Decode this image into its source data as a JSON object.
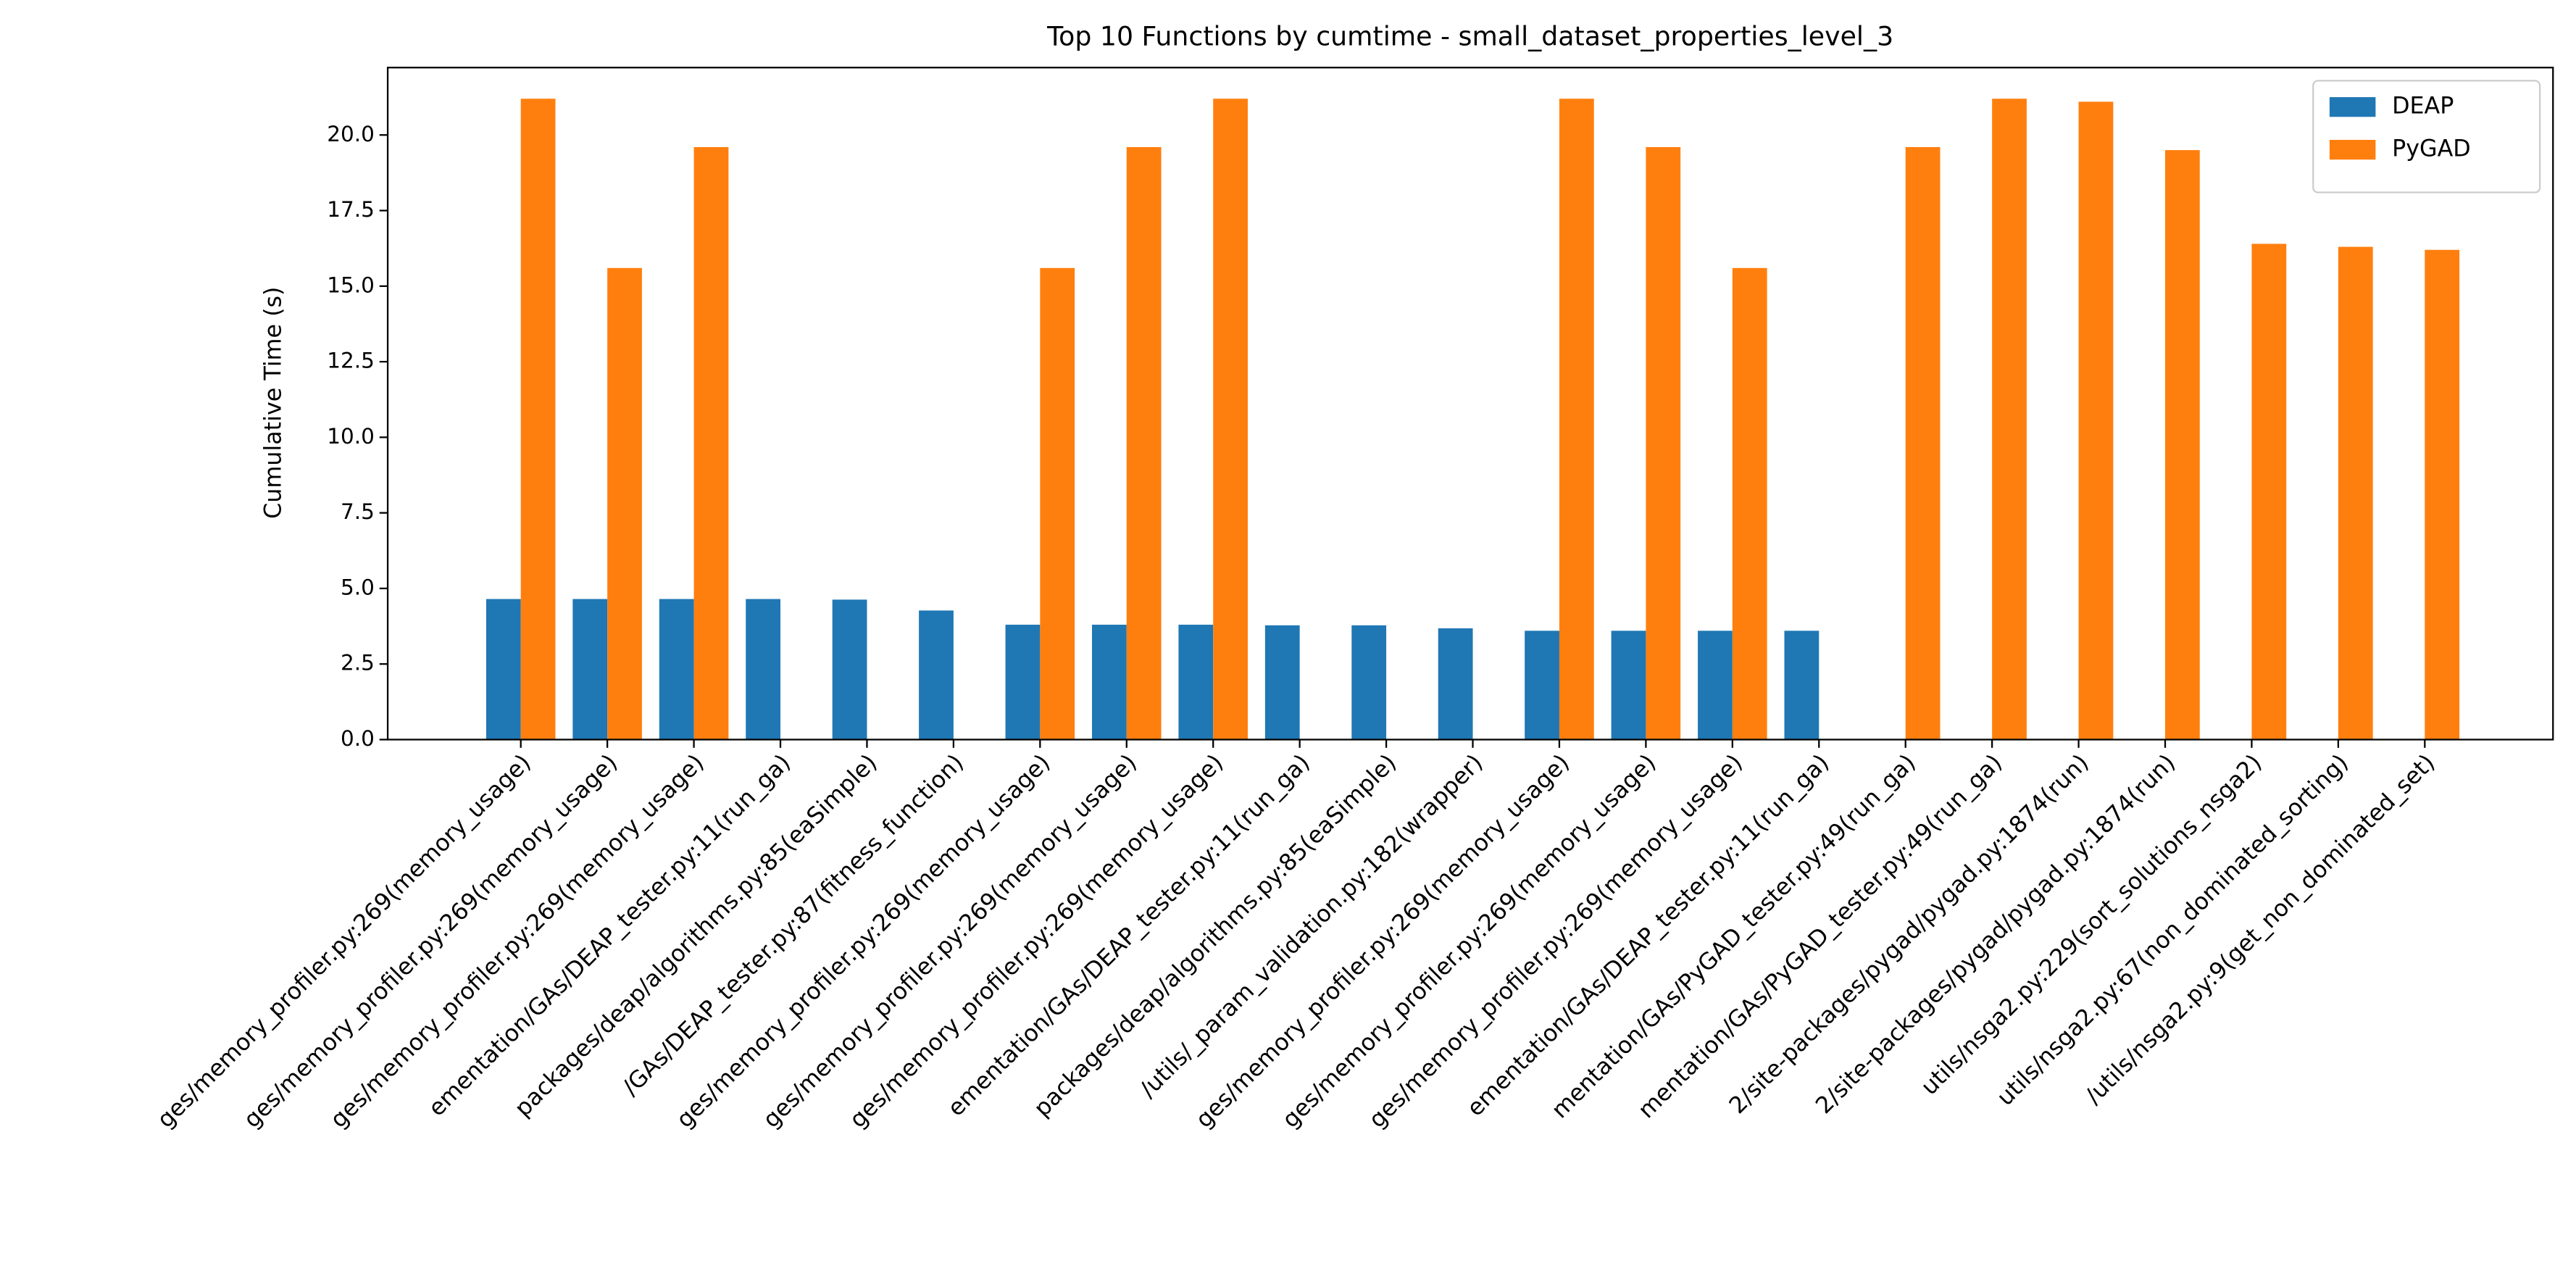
{
  "chart_data": {
    "type": "bar",
    "title": "Top 10 Functions by cumtime - small_dataset_properties_level_3",
    "y_label": "Cumulative Time (s)",
    "categories": [
      "ges/memory_profiler.py:269(memory_usage)",
      "ges/memory_profiler.py:269(memory_usage)",
      "ges/memory_profiler.py:269(memory_usage)",
      "ementation/GAs/DEAP_tester.py:11(run_ga)",
      "packages/deap/algorithms.py:85(eaSimple)",
      "/GAs/DEAP_tester.py:87(fitness_function)",
      "ges/memory_profiler.py:269(memory_usage)",
      "ges/memory_profiler.py:269(memory_usage)",
      "ges/memory_profiler.py:269(memory_usage)",
      "ementation/GAs/DEAP_tester.py:11(run_ga)",
      "packages/deap/algorithms.py:85(eaSimple)",
      "/utils/_param_validation.py:182(wrapper)",
      "ges/memory_profiler.py:269(memory_usage)",
      "ges/memory_profiler.py:269(memory_usage)",
      "ges/memory_profiler.py:269(memory_usage)",
      "ementation/GAs/DEAP_tester.py:11(run_ga)",
      "mentation/GAs/PyGAD_tester.py:49(run_ga)",
      "mentation/GAs/PyGAD_tester.py:49(run_ga)",
      "2/site-packages/pygad/pygad.py:1874(run)",
      "2/site-packages/pygad/pygad.py:1874(run)",
      "utils/nsga2.py:229(sort_solutions_nsga2)",
      "utils/nsga2.py:67(non_dominated_sorting)",
      "/utils/nsga2.py:9(get_non_dominated_set)"
    ],
    "series": [
      {
        "name": "DEAP",
        "color": "#1f77b4",
        "values": [
          4.65,
          4.65,
          4.65,
          4.65,
          4.63,
          4.27,
          3.8,
          3.8,
          3.8,
          3.78,
          3.78,
          3.68,
          3.6,
          3.6,
          3.6,
          3.6,
          0,
          0,
          0,
          0,
          0,
          0,
          0
        ]
      },
      {
        "name": "PyGAD",
        "color": "#ff7f0e",
        "values": [
          21.2,
          15.6,
          19.6,
          0,
          0,
          0,
          15.6,
          19.6,
          21.2,
          0,
          0,
          0,
          21.2,
          19.6,
          15.6,
          0,
          19.6,
          21.2,
          21.1,
          19.5,
          16.4,
          16.3,
          16.2
        ]
      }
    ],
    "ylim": [
      0,
      22.23
    ],
    "yticks": [
      {
        "value": 0,
        "label": "0.0"
      },
      2.5,
      {
        "value": 5,
        "label": "5.0"
      },
      7.5,
      {
        "value": 10,
        "label": "10.0"
      },
      12.5,
      {
        "value": 15,
        "label": "15.0"
      },
      17.5,
      {
        "value": 20,
        "label": "20.0"
      }
    ],
    "legend": "upper right"
  }
}
